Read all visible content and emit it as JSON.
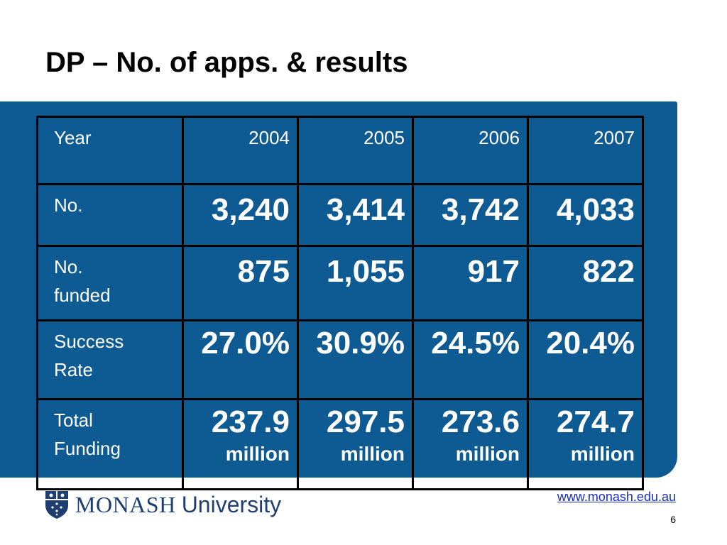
{
  "title": "DP – No. of apps. & results",
  "table": {
    "header": {
      "label": "Year",
      "years": [
        "2004",
        "2005",
        "2006",
        "2007"
      ]
    },
    "rows": {
      "applications": {
        "label": "No.",
        "values": [
          "3,240",
          "3,414",
          "3,742",
          "4,033"
        ]
      },
      "funded": {
        "label_line1": "No.",
        "label_line2": "funded",
        "values": [
          "875",
          "1,055",
          "917",
          "822"
        ]
      },
      "success_rate": {
        "label_line1": "Success",
        "label_line2": "Rate",
        "values": [
          "27.0%",
          "30.9%",
          "24.5%",
          "20.4%"
        ]
      },
      "total_funding": {
        "label_line1": "Total",
        "label_line2": "Funding",
        "values": [
          "237.9",
          "297.5",
          "273.6",
          "274.7"
        ],
        "unit": "million"
      }
    }
  },
  "footer": {
    "logo_word1": "MONASH",
    "logo_word2": "University",
    "url": "www.monash.edu.au",
    "page_number": "6"
  },
  "colors": {
    "panel": "#0e5a92",
    "logo": "#1f3f73",
    "link": "#1a2fbf"
  }
}
